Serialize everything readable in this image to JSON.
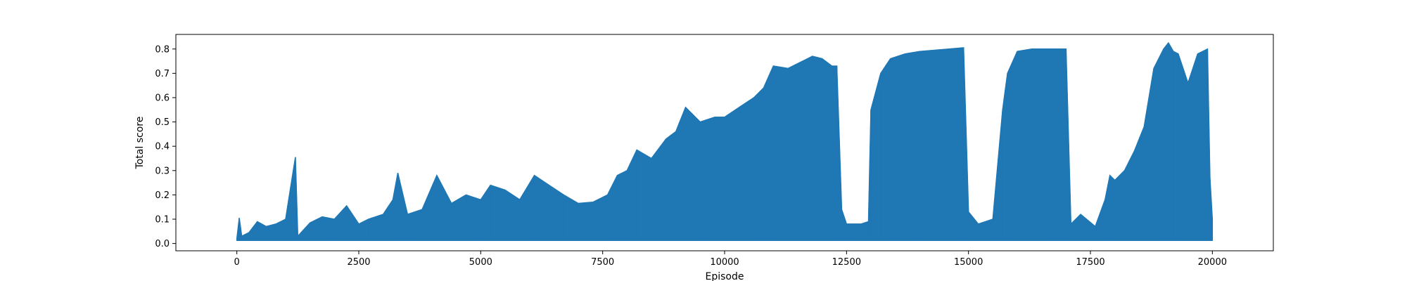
{
  "chart_data": {
    "type": "line",
    "title": "",
    "xlabel": "Episode",
    "ylabel": "Total score",
    "xlim": [
      -1250,
      21250
    ],
    "ylim": [
      -0.03,
      0.86
    ],
    "x_ticks": [
      0,
      2500,
      5000,
      7500,
      10000,
      12500,
      15000,
      17500,
      20000
    ],
    "x_tick_labels": [
      "0",
      "2500",
      "5000",
      "7500",
      "10000",
      "12500",
      "15000",
      "17500",
      "20000"
    ],
    "y_ticks": [
      0.0,
      0.1,
      0.2,
      0.3,
      0.4,
      0.5,
      0.6,
      0.7,
      0.8
    ],
    "y_tick_labels": [
      "0.0",
      "0.1",
      "0.2",
      "0.3",
      "0.4",
      "0.5",
      "0.6",
      "0.7",
      "0.8"
    ],
    "grid": false,
    "color": "#1f77b4",
    "series": [
      {
        "points": [
          [
            0,
            0.02
          ],
          [
            50,
            0.105
          ],
          [
            100,
            0.03
          ],
          [
            250,
            0.045
          ],
          [
            420,
            0.09
          ],
          [
            600,
            0.07
          ],
          [
            800,
            0.08
          ],
          [
            1000,
            0.1
          ],
          [
            1200,
            0.355
          ],
          [
            1250,
            0.03
          ],
          [
            1500,
            0.085
          ],
          [
            1750,
            0.11
          ],
          [
            2000,
            0.1
          ],
          [
            2250,
            0.155
          ],
          [
            2500,
            0.08
          ],
          [
            2700,
            0.1
          ],
          [
            3000,
            0.12
          ],
          [
            3200,
            0.18
          ],
          [
            3300,
            0.29
          ],
          [
            3500,
            0.12
          ],
          [
            3800,
            0.14
          ],
          [
            4100,
            0.28
          ],
          [
            4400,
            0.165
          ],
          [
            4700,
            0.2
          ],
          [
            5000,
            0.18
          ],
          [
            5200,
            0.24
          ],
          [
            5500,
            0.22
          ],
          [
            5800,
            0.18
          ],
          [
            6100,
            0.28
          ],
          [
            6400,
            0.24
          ],
          [
            6700,
            0.2
          ],
          [
            7000,
            0.165
          ],
          [
            7300,
            0.17
          ],
          [
            7600,
            0.2
          ],
          [
            7800,
            0.28
          ],
          [
            8000,
            0.3
          ],
          [
            8200,
            0.385
          ],
          [
            8500,
            0.35
          ],
          [
            8800,
            0.43
          ],
          [
            9000,
            0.46
          ],
          [
            9200,
            0.56
          ],
          [
            9500,
            0.5
          ],
          [
            9800,
            0.52
          ],
          [
            10000,
            0.52
          ],
          [
            10300,
            0.56
          ],
          [
            10600,
            0.6
          ],
          [
            10800,
            0.64
          ],
          [
            11000,
            0.73
          ],
          [
            11300,
            0.72
          ],
          [
            11600,
            0.75
          ],
          [
            11800,
            0.77
          ],
          [
            12000,
            0.76
          ],
          [
            12200,
            0.73
          ],
          [
            12300,
            0.73
          ],
          [
            12400,
            0.14
          ],
          [
            12500,
            0.08
          ],
          [
            12800,
            0.08
          ],
          [
            12950,
            0.09
          ],
          [
            13000,
            0.55
          ],
          [
            13200,
            0.7
          ],
          [
            13400,
            0.76
          ],
          [
            13700,
            0.78
          ],
          [
            14000,
            0.79
          ],
          [
            14300,
            0.795
          ],
          [
            14600,
            0.8
          ],
          [
            14900,
            0.805
          ],
          [
            15000,
            0.13
          ],
          [
            15200,
            0.08
          ],
          [
            15500,
            0.1
          ],
          [
            15700,
            0.55
          ],
          [
            15800,
            0.7
          ],
          [
            16000,
            0.79
          ],
          [
            16300,
            0.8
          ],
          [
            16600,
            0.8
          ],
          [
            16800,
            0.8
          ],
          [
            17000,
            0.8
          ],
          [
            17100,
            0.08
          ],
          [
            17300,
            0.12
          ],
          [
            17600,
            0.07
          ],
          [
            17800,
            0.18
          ],
          [
            17900,
            0.28
          ],
          [
            18000,
            0.26
          ],
          [
            18200,
            0.3
          ],
          [
            18400,
            0.38
          ],
          [
            18600,
            0.48
          ],
          [
            18800,
            0.72
          ],
          [
            19000,
            0.8
          ],
          [
            19100,
            0.825
          ],
          [
            19200,
            0.79
          ],
          [
            19300,
            0.78
          ],
          [
            19500,
            0.66
          ],
          [
            19700,
            0.78
          ],
          [
            19900,
            0.8
          ],
          [
            19950,
            0.27
          ],
          [
            20000,
            0.1
          ]
        ]
      }
    ]
  }
}
